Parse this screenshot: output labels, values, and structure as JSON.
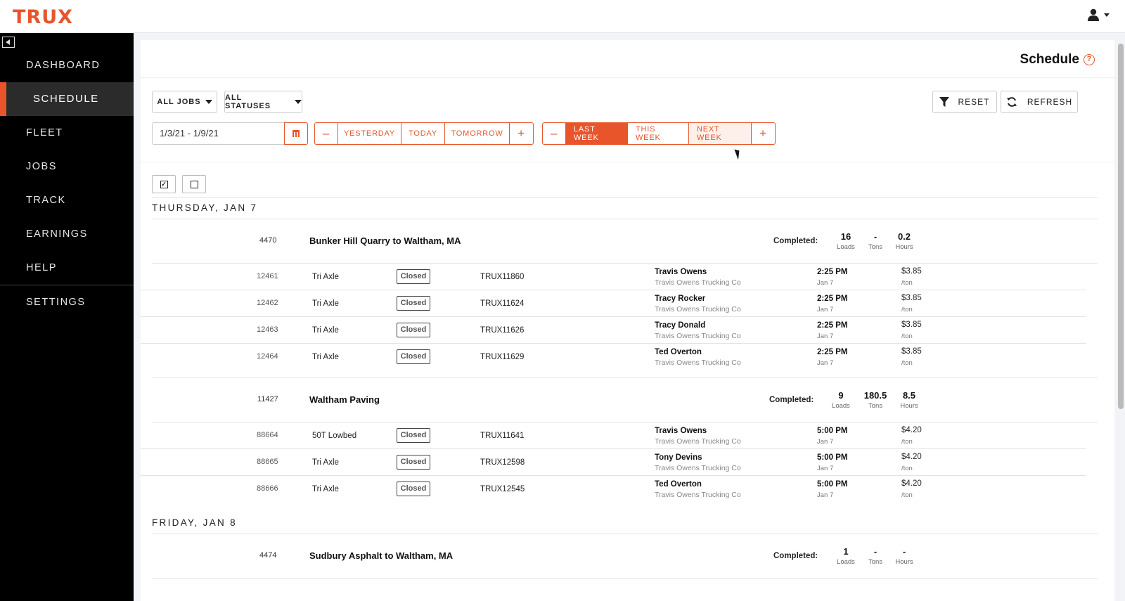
{
  "app": {
    "logo": "TRUX"
  },
  "sidebar": {
    "items": [
      {
        "label": "DASHBOARD"
      },
      {
        "label": "SCHEDULE"
      },
      {
        "label": "FLEET"
      },
      {
        "label": "JOBS"
      },
      {
        "label": "TRACK"
      },
      {
        "label": "EARNINGS"
      },
      {
        "label": "HELP"
      }
    ],
    "settings": "SETTINGS"
  },
  "header": {
    "title": "Schedule",
    "help_icon": "?"
  },
  "filters": {
    "jobs": "ALL JOBS",
    "statuses": "ALL STATUSES",
    "reset": "RESET",
    "refresh": "REFRESH",
    "date_range": "1/3/21  -  1/9/21",
    "day_nav": {
      "minus": "–",
      "yesterday": "YESTERDAY",
      "today": "TODAY",
      "tomorrow": "TOMORROW",
      "plus": "+"
    },
    "week_nav": {
      "minus": "–",
      "last_week": "LAST WEEK",
      "this_week": "THIS WEEK",
      "next_week": "NEXT WEEK",
      "plus": "+"
    }
  },
  "checkboxes": {
    "check_mark": "✓"
  },
  "days": [
    {
      "label": "THURSDAY, JAN 7",
      "jobs": [
        {
          "id": "4470",
          "name": "Bunker Hill Quarry to Waltham, MA",
          "completed_label": "Completed:",
          "stats": [
            {
              "value": "16",
              "label": "Loads"
            },
            {
              "value": "-",
              "label": "Tons"
            },
            {
              "value": "0.2",
              "label": "Hours"
            }
          ],
          "rows": [
            {
              "id": "12461",
              "type": "Tri Axle",
              "status": "Closed",
              "truck": "TRUX11860",
              "driver": "Travis Owens",
              "company": "Travis Owens Trucking Co",
              "time": "2:25 PM",
              "date": "Jan 7",
              "rate": "$3.85",
              "unit": "/ton"
            },
            {
              "id": "12462",
              "type": "Tri Axle",
              "status": "Closed",
              "truck": "TRUX11624",
              "driver": "Tracy Rocker",
              "company": "Travis Owens Trucking Co",
              "time": "2:25 PM",
              "date": "Jan 7",
              "rate": "$3.85",
              "unit": "/ton"
            },
            {
              "id": "12463",
              "type": "Tri Axle",
              "status": "Closed",
              "truck": "TRUX11626",
              "driver": "Tracy Donald",
              "company": "Travis Owens Trucking Co",
              "time": "2:25 PM",
              "date": "Jan 7",
              "rate": "$3.85",
              "unit": "/ton"
            },
            {
              "id": "12464",
              "type": "Tri Axle",
              "status": "Closed",
              "truck": "TRUX11629",
              "driver": "Ted Overton",
              "company": "Travis Owens Trucking Co",
              "time": "2:25 PM",
              "date": "Jan 7",
              "rate": "$3.85",
              "unit": "/ton"
            }
          ]
        },
        {
          "id": "11427",
          "name": "Waltham Paving",
          "completed_label": "Completed:",
          "stats": [
            {
              "value": "9",
              "label": "Loads"
            },
            {
              "value": "180.5",
              "label": "Tons"
            },
            {
              "value": "8.5",
              "label": "Hours"
            }
          ],
          "rows": [
            {
              "id": "88664",
              "type": "50T Lowbed",
              "status": "Closed",
              "truck": "TRUX11641",
              "driver": "Travis Owens",
              "company": "Travis Owens Trucking Co",
              "time": "5:00 PM",
              "date": "Jan 7",
              "rate": "$4.20",
              "unit": "/ton"
            },
            {
              "id": "88665",
              "type": "Tri Axle",
              "status": "Closed",
              "truck": "TRUX12598",
              "driver": "Tony Devins",
              "company": "Travis Owens Trucking Co",
              "time": "5:00 PM",
              "date": "Jan 7",
              "rate": "$4.20",
              "unit": "/ton"
            },
            {
              "id": "88666",
              "type": "Tri Axle",
              "status": "Closed",
              "truck": "TRUX12545",
              "driver": "Ted Overton",
              "company": "Travis Owens Trucking Co",
              "time": "5:00 PM",
              "date": "Jan 7",
              "rate": "$4.20",
              "unit": "/ton"
            }
          ]
        }
      ]
    },
    {
      "label": "FRIDAY, JAN 8",
      "jobs": [
        {
          "id": "4474",
          "name": "Sudbury Asphalt to Waltham, MA",
          "completed_label": "Completed:",
          "stats": [
            {
              "value": "1",
              "label": "Loads"
            },
            {
              "value": "-",
              "label": "Tons"
            },
            {
              "value": "-",
              "label": "Hours"
            }
          ]
        }
      ]
    }
  ]
}
